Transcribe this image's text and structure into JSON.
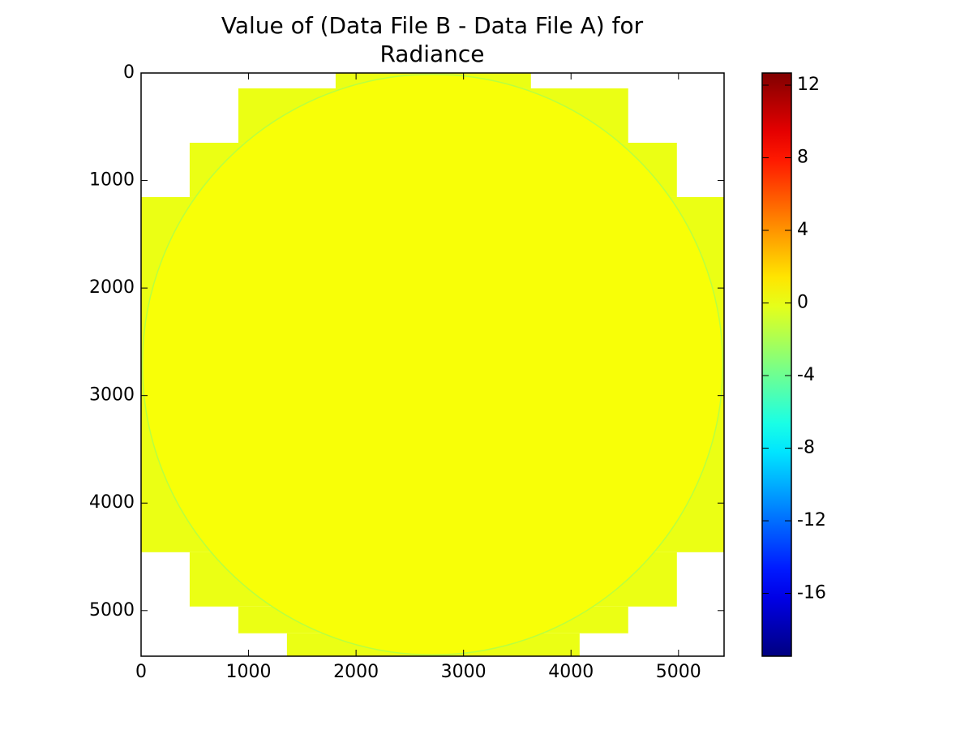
{
  "chart_data": {
    "type": "image",
    "title": "Value of (Data File B - Data File A) for Radiance",
    "colormap": "jet",
    "xlim": [
      0,
      5424
    ],
    "ylim": [
      5424,
      0
    ],
    "xticks": [
      0,
      1000,
      2000,
      3000,
      4000,
      5000
    ],
    "yticks": [
      0,
      1000,
      2000,
      3000,
      4000,
      5000
    ],
    "regions": [
      {
        "y": [
          0,
          143
        ],
        "x": [
          1810,
          3627
        ],
        "value": 0
      },
      {
        "y": [
          143,
          649
        ],
        "x": [
          905,
          4532
        ],
        "value": 0
      },
      {
        "y": [
          649,
          1154
        ],
        "x": [
          452,
          4985
        ],
        "value": 0
      },
      {
        "y": [
          1154,
          4457
        ],
        "x": [
          0,
          5424
        ],
        "value": 0
      },
      {
        "y": [
          4457,
          4962
        ],
        "x": [
          452,
          4985
        ],
        "value": 0
      },
      {
        "y": [
          4962,
          5211
        ],
        "x": [
          905,
          4532
        ],
        "value": 0
      },
      {
        "y": [
          5211,
          5424
        ],
        "x": [
          1357,
          4080
        ],
        "value": 0
      }
    ],
    "disk": {
      "center": [
        2712,
        2712
      ],
      "radius": 2700,
      "value": 0.4
    },
    "colorbar": {
      "clim": [
        -19.46,
        12.67
      ],
      "ticks": [
        12,
        8,
        4,
        0,
        -4,
        -8,
        -12,
        -16
      ]
    }
  }
}
